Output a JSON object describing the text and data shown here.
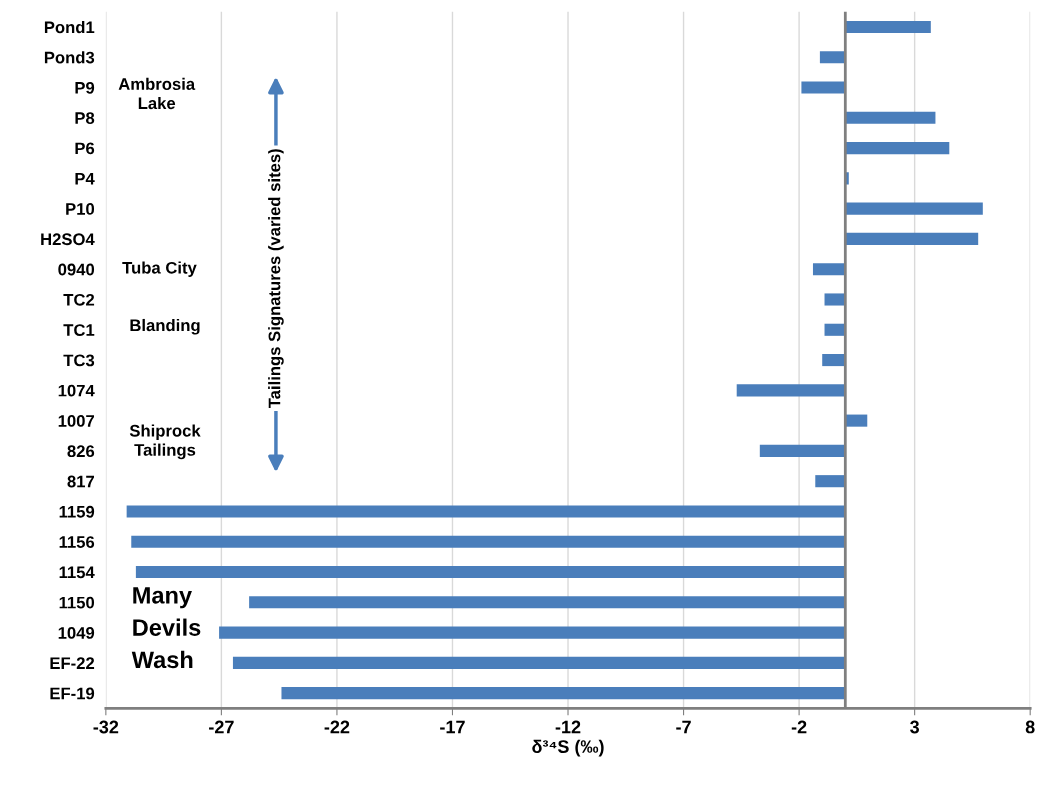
{
  "chart_data": {
    "type": "bar",
    "orientation": "horizontal",
    "xlabel": "δ³⁴S (‰)",
    "categories": [
      "Pond1",
      "Pond3",
      "P9",
      "P8",
      "P6",
      "P4",
      "P10",
      "H2SO4",
      "0940",
      "TC2",
      "TC1",
      "TC3",
      "1074",
      "1007",
      "826",
      "817",
      "1159",
      "1156",
      "1154",
      "1150",
      "1049",
      "EF-22",
      "EF-19"
    ],
    "values": [
      3.7,
      -1.1,
      -1.9,
      3.9,
      4.5,
      0.15,
      5.95,
      5.75,
      -1.4,
      -0.9,
      -0.9,
      -1.0,
      -4.7,
      0.95,
      -3.7,
      -1.3,
      -31.1,
      -30.9,
      -30.7,
      -25.8,
      -27.1,
      -26.5,
      -24.4
    ],
    "color": "#4a7ebb",
    "xlim": [
      -32,
      8
    ],
    "xticks": [
      -32,
      -27,
      -22,
      -17,
      -12,
      -7,
      -2,
      3,
      8
    ],
    "grid": "x",
    "ref_lines": [
      {
        "axis": "x",
        "value": 0,
        "color": "#7f7f7f"
      }
    ],
    "annotations": [
      "Ambrosia Lake",
      "Tuba City",
      "Blanding",
      "Shiprock Tailings",
      "Many Devils Wash",
      "Tailings Signatures (varied sites)"
    ]
  }
}
